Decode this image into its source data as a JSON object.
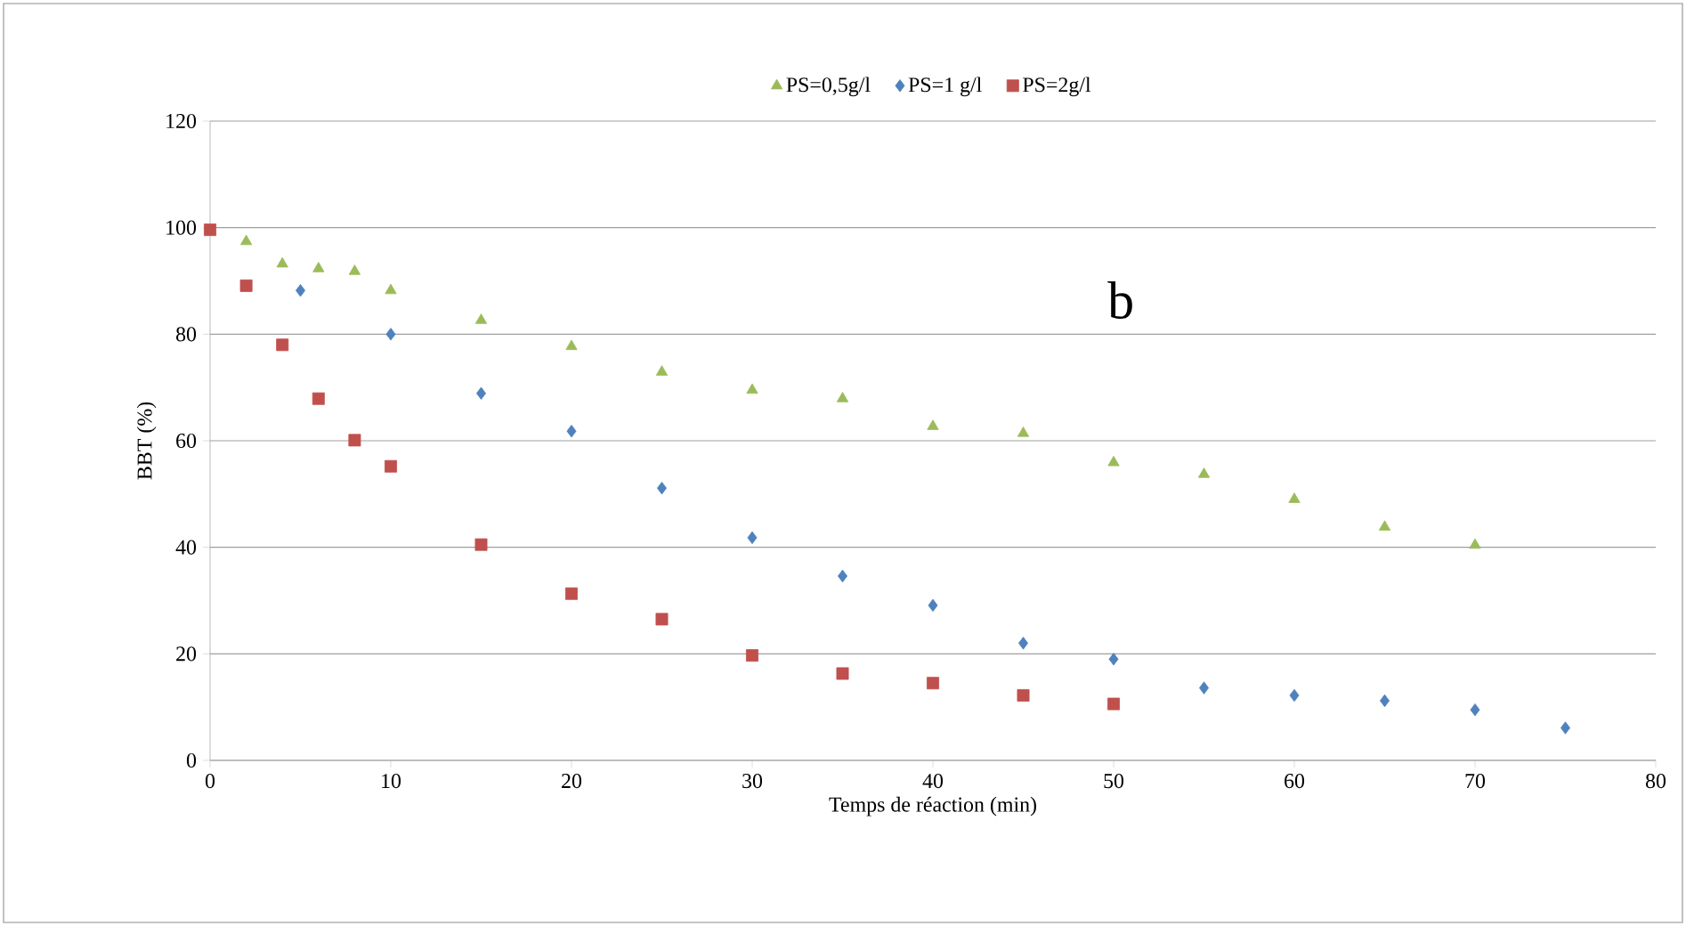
{
  "chart_data": {
    "type": "scatter",
    "xlabel": "Temps de réaction (min)",
    "ylabel": "BBT (%)",
    "annotations": [
      "b"
    ],
    "xlim": [
      0,
      80
    ],
    "ylim": [
      0,
      120
    ],
    "xticks": [
      0,
      10,
      20,
      30,
      40,
      50,
      60,
      70,
      80
    ],
    "yticks": [
      0,
      20,
      40,
      60,
      80,
      100,
      120
    ],
    "grid": "y",
    "legend": "top",
    "series": [
      {
        "name": "PS=0,5g/l",
        "color": "#9bbb59",
        "marker": "triangle",
        "x": [
          2,
          4,
          6,
          8,
          10,
          15,
          20,
          25,
          30,
          35,
          40,
          45,
          50,
          55,
          60,
          65,
          70
        ],
        "values": [
          97.4,
          93.2,
          92.3,
          91.8,
          88.2,
          82.6,
          77.7,
          72.9,
          69.5,
          67.9,
          62.7,
          61.4,
          55.9,
          53.7,
          49,
          43.8,
          40.4
        ]
      },
      {
        "name": "PS=1 g/l",
        "color": "#4f81bd",
        "marker": "diamond",
        "x": [
          5,
          10,
          15,
          20,
          25,
          30,
          35,
          40,
          45,
          50,
          55,
          60,
          65,
          70,
          75
        ],
        "values": [
          88.2,
          80,
          68.9,
          61.8,
          51.1,
          41.8,
          34.6,
          29.1,
          22,
          19,
          13.6,
          12.2,
          11.2,
          9.5,
          6.1
        ]
      },
      {
        "name": "PS=2g/l",
        "color": "#c0504d",
        "marker": "square",
        "x": [
          0,
          2,
          4,
          6,
          8,
          10,
          15,
          20,
          25,
          30,
          35,
          40,
          45,
          50
        ],
        "values": [
          99.6,
          89.1,
          78,
          67.9,
          60.1,
          55.2,
          40.5,
          31.3,
          26.5,
          19.7,
          16.3,
          14.5,
          12.2,
          10.6
        ]
      }
    ]
  }
}
